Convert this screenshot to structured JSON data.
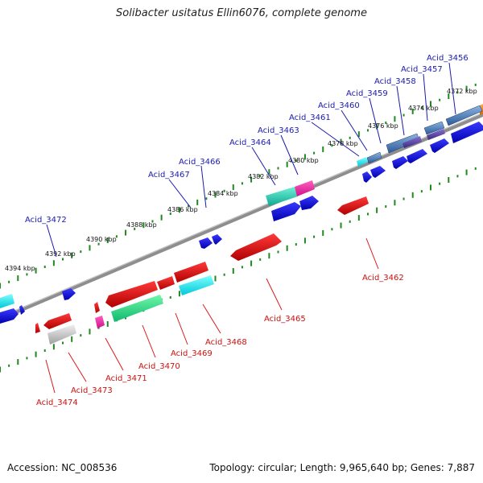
{
  "title": "Solibacter usitatus Ellin6076, complete genome",
  "accession": "Accession: NC_008536",
  "topology": "Topology: circular; Length: 9,965,640 bp; Genes: 7,887",
  "colors": {
    "backbone": "#8e8e8e",
    "tick": "#1e8a1e",
    "label_plus": "#1a1ab0",
    "label_minus": "#cc1010",
    "leader_plus": "#1a1ab0",
    "leader_minus": "#dd1a1a"
  },
  "ticks": [
    {
      "label": "4372 kbp"
    },
    {
      "label": "4374 kbp"
    },
    {
      "label": "4376 kbp"
    },
    {
      "label": "4378 kbp"
    },
    {
      "label": "4380 kbp"
    },
    {
      "label": "4382 kbp"
    },
    {
      "label": "4384 kbp"
    },
    {
      "label": "4386 kbp"
    },
    {
      "label": "4388 kbp"
    },
    {
      "label": "4390 kbp"
    },
    {
      "label": "4392 kbp"
    },
    {
      "label": "4394 kbp"
    }
  ],
  "plus_labels": [
    {
      "name": "Acid_3456"
    },
    {
      "name": "Acid_3457"
    },
    {
      "name": "Acid_3458"
    },
    {
      "name": "Acid_3459"
    },
    {
      "name": "Acid_3460"
    },
    {
      "name": "Acid_3461"
    },
    {
      "name": "Acid_3463"
    },
    {
      "name": "Acid_3464"
    },
    {
      "name": "Acid_3466"
    },
    {
      "name": "Acid_3467"
    },
    {
      "name": "Acid_3472"
    }
  ],
  "minus_labels": [
    {
      "name": "Acid_3462"
    },
    {
      "name": "Acid_3465"
    },
    {
      "name": "Acid_3468"
    },
    {
      "name": "Acid_3469"
    },
    {
      "name": "Acid_3470"
    },
    {
      "name": "Acid_3471"
    },
    {
      "name": "Acid_3473"
    },
    {
      "name": "Acid_3474"
    }
  ]
}
